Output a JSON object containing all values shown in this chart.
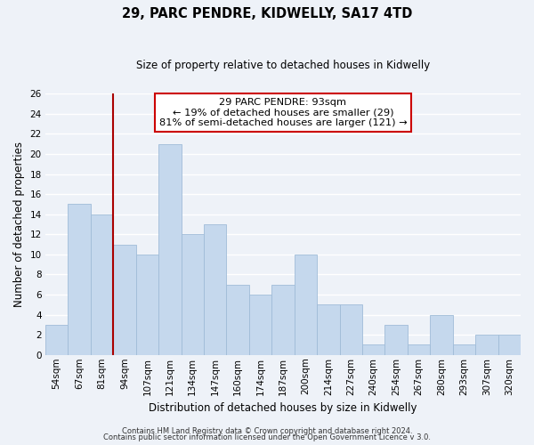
{
  "title": "29, PARC PENDRE, KIDWELLY, SA17 4TD",
  "subtitle": "Size of property relative to detached houses in Kidwelly",
  "xlabel": "Distribution of detached houses by size in Kidwelly",
  "ylabel": "Number of detached properties",
  "footer_line1": "Contains HM Land Registry data © Crown copyright and database right 2024.",
  "footer_line2": "Contains public sector information licensed under the Open Government Licence v 3.0.",
  "bar_labels": [
    "54sqm",
    "67sqm",
    "81sqm",
    "94sqm",
    "107sqm",
    "121sqm",
    "134sqm",
    "147sqm",
    "160sqm",
    "174sqm",
    "187sqm",
    "200sqm",
    "214sqm",
    "227sqm",
    "240sqm",
    "254sqm",
    "267sqm",
    "280sqm",
    "293sqm",
    "307sqm",
    "320sqm"
  ],
  "bar_values": [
    3,
    15,
    14,
    11,
    10,
    21,
    12,
    13,
    7,
    6,
    7,
    10,
    5,
    5,
    1,
    3,
    1,
    4,
    1,
    2,
    2
  ],
  "bar_color": "#c5d8ed",
  "bar_edge_color": "#a0bcd8",
  "highlight_line_after_index": 2,
  "highlight_line_color": "#aa0000",
  "ylim": [
    0,
    26
  ],
  "yticks": [
    0,
    2,
    4,
    6,
    8,
    10,
    12,
    14,
    16,
    18,
    20,
    22,
    24,
    26
  ],
  "annotation_box_title": "29 PARC PENDRE: 93sqm",
  "annotation_line1": "← 19% of detached houses are smaller (29)",
  "annotation_line2": "81% of semi-detached houses are larger (121) →",
  "annotation_box_color": "#ffffff",
  "annotation_box_edge_color": "#cc0000",
  "background_color": "#eef2f8",
  "grid_color": "#ffffff",
  "figwidth": 6.0,
  "figheight": 5.0,
  "dpi": 100
}
